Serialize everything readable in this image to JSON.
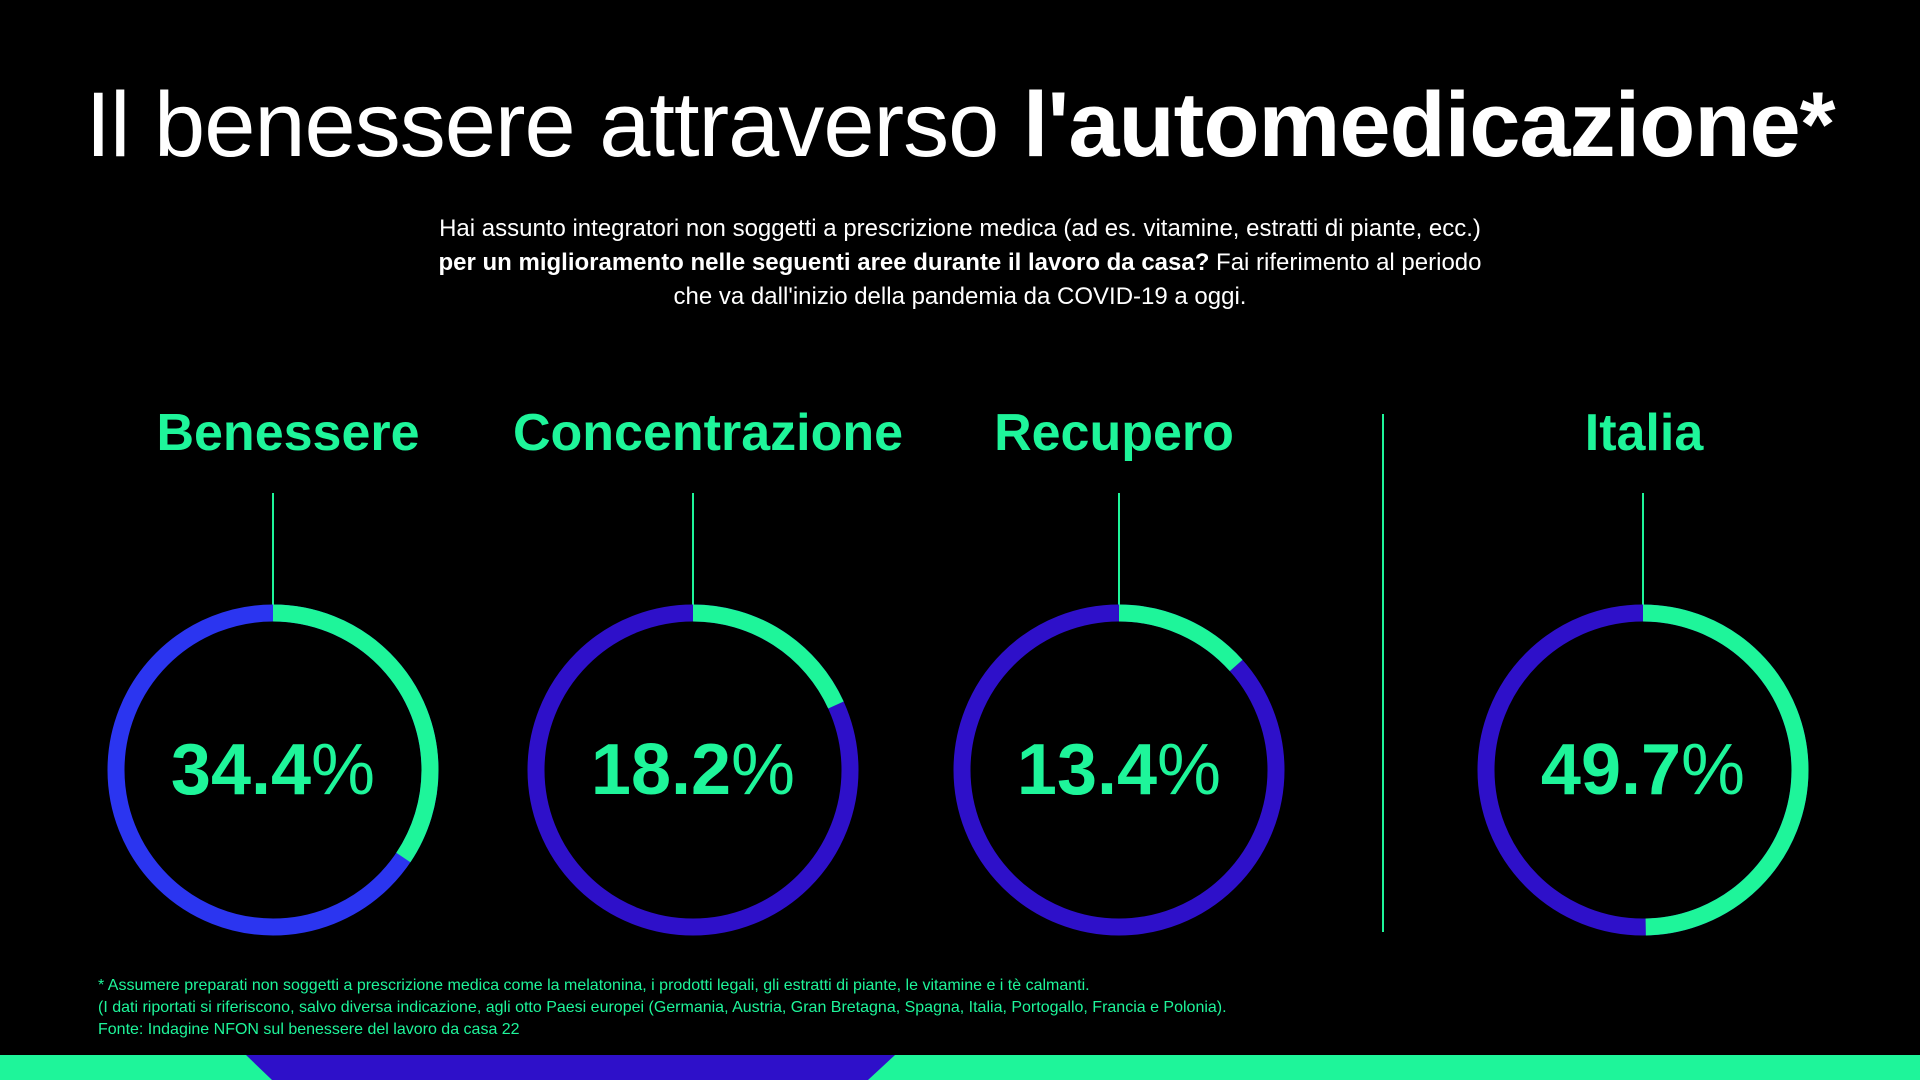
{
  "title": {
    "light": "Il benessere attraverso ",
    "bold": "l'automedicazione*"
  },
  "subtitle": {
    "line1": "Hai assunto integratori non soggetti a prescrizione medica (ad es. vitamine, estratti di piante, ecc.)",
    "line2_bold": "per un miglioramento nelle seguenti aree durante il lavoro da casa?",
    "line2_rest": " Fai riferimento al periodo",
    "line3": "che va dall'inizio della pandemia da COVID-19 a oggi."
  },
  "colors": {
    "accent": "#1ef59a",
    "ring_blue": "#2b35f0",
    "ring_indigo": "#2e10c9",
    "background": "#000000"
  },
  "chart_data": {
    "type": "pie",
    "unit": "%",
    "items": [
      {
        "label": "Benessere",
        "value": 34.4,
        "value_label": "34.4",
        "sign": "%",
        "ring_color": "#2b35f0"
      },
      {
        "label": "Concentrazione",
        "value": 18.2,
        "value_label": "18.2",
        "sign": "%",
        "ring_color": "#2e10c9"
      },
      {
        "label": "Recupero",
        "value": 13.4,
        "value_label": "13.4",
        "sign": "%",
        "ring_color": "#2e10c9"
      },
      {
        "label": "Italia",
        "value": 49.7,
        "value_label": "49.7",
        "sign": "%",
        "ring_color": "#2e10c9"
      }
    ]
  },
  "footnotes": {
    "note1": "* Assumere preparati non soggetti a prescrizione medica come la melatonina, i prodotti legali, gli estratti di piante, le vitamine e i tè calmanti.",
    "note2": "(I dati riportati si riferiscono, salvo diversa indicazione, agli otto Paesi europei (Germania, Austria, Gran Bretagna, Spagna, Italia, Portogallo, Francia e Polonia).",
    "source": "Fonte: Indagine NFON sul benessere del lavoro da casa 22"
  }
}
